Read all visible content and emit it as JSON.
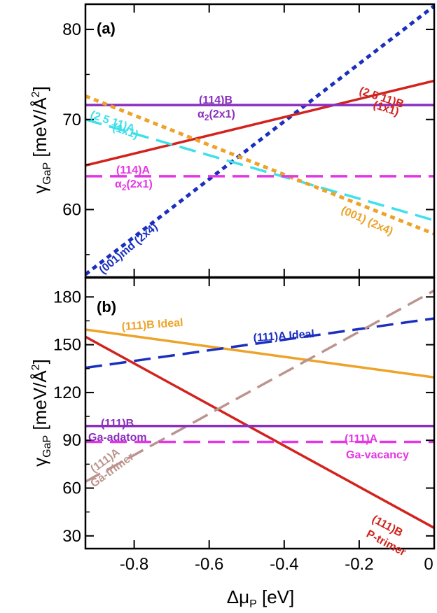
{
  "chart_data": [
    {
      "type": "line",
      "panel_label": "(a)",
      "xlabel": "",
      "ylabel": "γ",
      "ylabel_sub": "GaP",
      "ylabel_unit": "[meV/Å",
      "ylabel_sup": "2",
      "ylabel_end": "]",
      "xlim": [
        -0.93,
        0.0
      ],
      "ylim": [
        52.5,
        82.8
      ],
      "yticks": [
        {
          "value": 60,
          "label": "60"
        },
        {
          "value": 70,
          "label": "70"
        },
        {
          "value": 80,
          "label": "80"
        }
      ],
      "series": [
        {
          "id": "001md",
          "x": [
            -0.93,
            0.0
          ],
          "y": [
            52.8,
            82.6
          ],
          "color": "#1a2fbf",
          "dash": "dotted",
          "label": [
            "(001)md (2x4)"
          ]
        },
        {
          "id": "25_11B",
          "x": [
            -0.93,
            0.0
          ],
          "y": [
            64.9,
            74.3
          ],
          "color": "#d2231e",
          "dash": "solid",
          "label": [
            "(2 5 11)B",
            "(1x1)"
          ]
        },
        {
          "id": "114B",
          "x": [
            -0.93,
            0.0
          ],
          "y": [
            71.6,
            71.6
          ],
          "color": "#8a2fbe",
          "dash": "solid",
          "label": [
            "(114)B",
            "α",
            "2",
            "(2x1)"
          ]
        },
        {
          "id": "25_11A",
          "x": [
            -0.93,
            0.0
          ],
          "y": [
            70.0,
            58.8
          ],
          "color": "#3ee0ea",
          "dash": "dashed",
          "label": [
            "(2 5 11)A",
            "(1x1)"
          ]
        },
        {
          "id": "001_2x4",
          "x": [
            -0.93,
            0.0
          ],
          "y": [
            72.6,
            57.3
          ],
          "color": "#eda32a",
          "dash": "dotted",
          "label": [
            "(001) (2x4)"
          ]
        },
        {
          "id": "114A",
          "x": [
            -0.93,
            0.0
          ],
          "y": [
            63.7,
            63.7
          ],
          "color": "#e536e5",
          "dash": "dashed",
          "label": [
            "(114)A",
            "α",
            "2",
            "(2x1)"
          ]
        }
      ]
    },
    {
      "type": "line",
      "panel_label": "(b)",
      "xlabel": "Δμ",
      "xlabel_sub": "P",
      "xlabel_unit": "[eV]",
      "ylabel": "γ",
      "ylabel_sub": "GaP",
      "ylabel_unit": "[meV/Å",
      "ylabel_sup": "2",
      "ylabel_end": "]",
      "xlim": [
        -0.93,
        0.0
      ],
      "ylim": [
        22.0,
        192.0
      ],
      "xticks": [
        {
          "value": -0.8,
          "label": "-0.8"
        },
        {
          "value": -0.6,
          "label": "-0.6"
        },
        {
          "value": -0.4,
          "label": "-0.4"
        },
        {
          "value": -0.2,
          "label": "-0.2"
        },
        {
          "value": 0.0,
          "label": "0"
        }
      ],
      "yticks": [
        {
          "value": 30,
          "label": "30"
        },
        {
          "value": 60,
          "label": "60"
        },
        {
          "value": 90,
          "label": "90"
        },
        {
          "value": 120,
          "label": "120"
        },
        {
          "value": 150,
          "label": "150"
        },
        {
          "value": 180,
          "label": "180"
        }
      ],
      "series": [
        {
          "id": "111B_ideal",
          "x": [
            -0.93,
            0.0
          ],
          "y": [
            159.5,
            129.5
          ],
          "color": "#eda32a",
          "dash": "solid",
          "label": [
            "(111)B Ideal"
          ]
        },
        {
          "id": "111A_ideal",
          "x": [
            -0.93,
            0.0
          ],
          "y": [
            135.5,
            166.5
          ],
          "color": "#1a2fbf",
          "dash": "dashed",
          "label": [
            "(111)A Ideal"
          ]
        },
        {
          "id": "111B_Ptrimer",
          "x": [
            -0.93,
            0.0
          ],
          "y": [
            155.0,
            35.0
          ],
          "color": "#d2231e",
          "dash": "solid",
          "label": [
            "(111)B",
            "P-trimer"
          ]
        },
        {
          "id": "111A_Gatrimer",
          "x": [
            -0.93,
            0.0
          ],
          "y": [
            64.0,
            184.0
          ],
          "color": "#bc948e",
          "dash": "dashed",
          "label": [
            "(111)A",
            "Ga-trimer"
          ]
        },
        {
          "id": "111B_Gaadatom",
          "x": [
            -0.93,
            0.0
          ],
          "y": [
            99.0,
            99.0
          ],
          "color": "#8a2fbe",
          "dash": "solid",
          "label": [
            "(111)B",
            "Ga-adatom"
          ]
        },
        {
          "id": "111A_Gavacancy",
          "x": [
            -0.93,
            0.0
          ],
          "y": [
            89.0,
            89.0
          ],
          "color": "#e536e5",
          "dash": "dashed",
          "label": [
            "(111)A",
            "Ga-vacancy"
          ]
        }
      ]
    }
  ]
}
